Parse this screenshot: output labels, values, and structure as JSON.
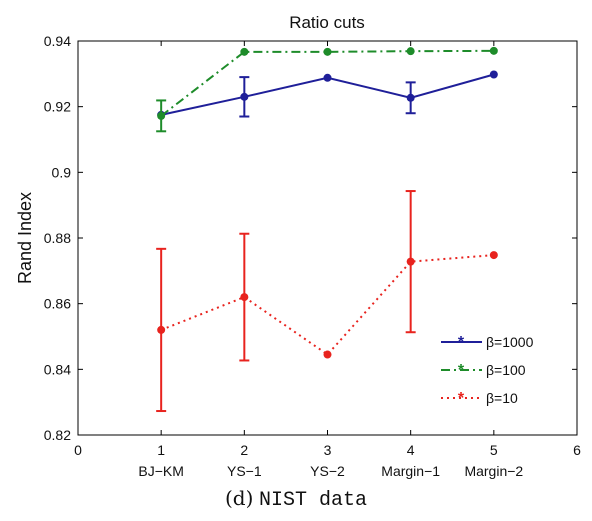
{
  "caption": {
    "label": "(d)",
    "text": "NIST data"
  },
  "chart_data": {
    "type": "line",
    "title": "Ratio cuts",
    "xlabel": "",
    "ylabel": "Rand Index",
    "xlim": [
      0,
      6
    ],
    "ylim": [
      0.82,
      0.94
    ],
    "x_ticks": [
      0,
      1,
      2,
      3,
      4,
      5,
      6
    ],
    "y_ticks": [
      0.82,
      0.84,
      0.86,
      0.88,
      0.9,
      0.92,
      0.94
    ],
    "y_tick_labels": [
      "0.82",
      "0.84",
      "0.86",
      "0.88",
      "0.9",
      "0.92",
      "0.94"
    ],
    "x": [
      1,
      2,
      3,
      4,
      5
    ],
    "categories": [
      "BJ−KM",
      "YS−1",
      "YS−2",
      "Margin−1",
      "Margin−2"
    ],
    "grid": false,
    "legend_position": "bottom-right",
    "series": [
      {
        "name": "β=1000",
        "color": "#1f1f99",
        "dash": "solid",
        "values": [
          0.9175,
          0.923,
          0.9288,
          0.9227,
          0.9298
        ],
        "error": [
          0.0,
          0.006,
          0.0,
          0.0047,
          0.0
        ]
      },
      {
        "name": "β=100",
        "color": "#1e8c2a",
        "dash": "dashdot",
        "values": [
          0.9172,
          0.9367,
          0.9367,
          0.9369,
          0.937
        ],
        "error": [
          0.0047,
          0.0,
          0.0,
          0.0,
          0.0
        ]
      },
      {
        "name": "β=10",
        "color": "#e8231e",
        "dash": "dotted",
        "values": [
          0.852,
          0.862,
          0.8445,
          0.8728,
          0.8748
        ],
        "error": [
          0.0247,
          0.0193,
          0.0,
          0.0215,
          0.0
        ]
      }
    ]
  }
}
